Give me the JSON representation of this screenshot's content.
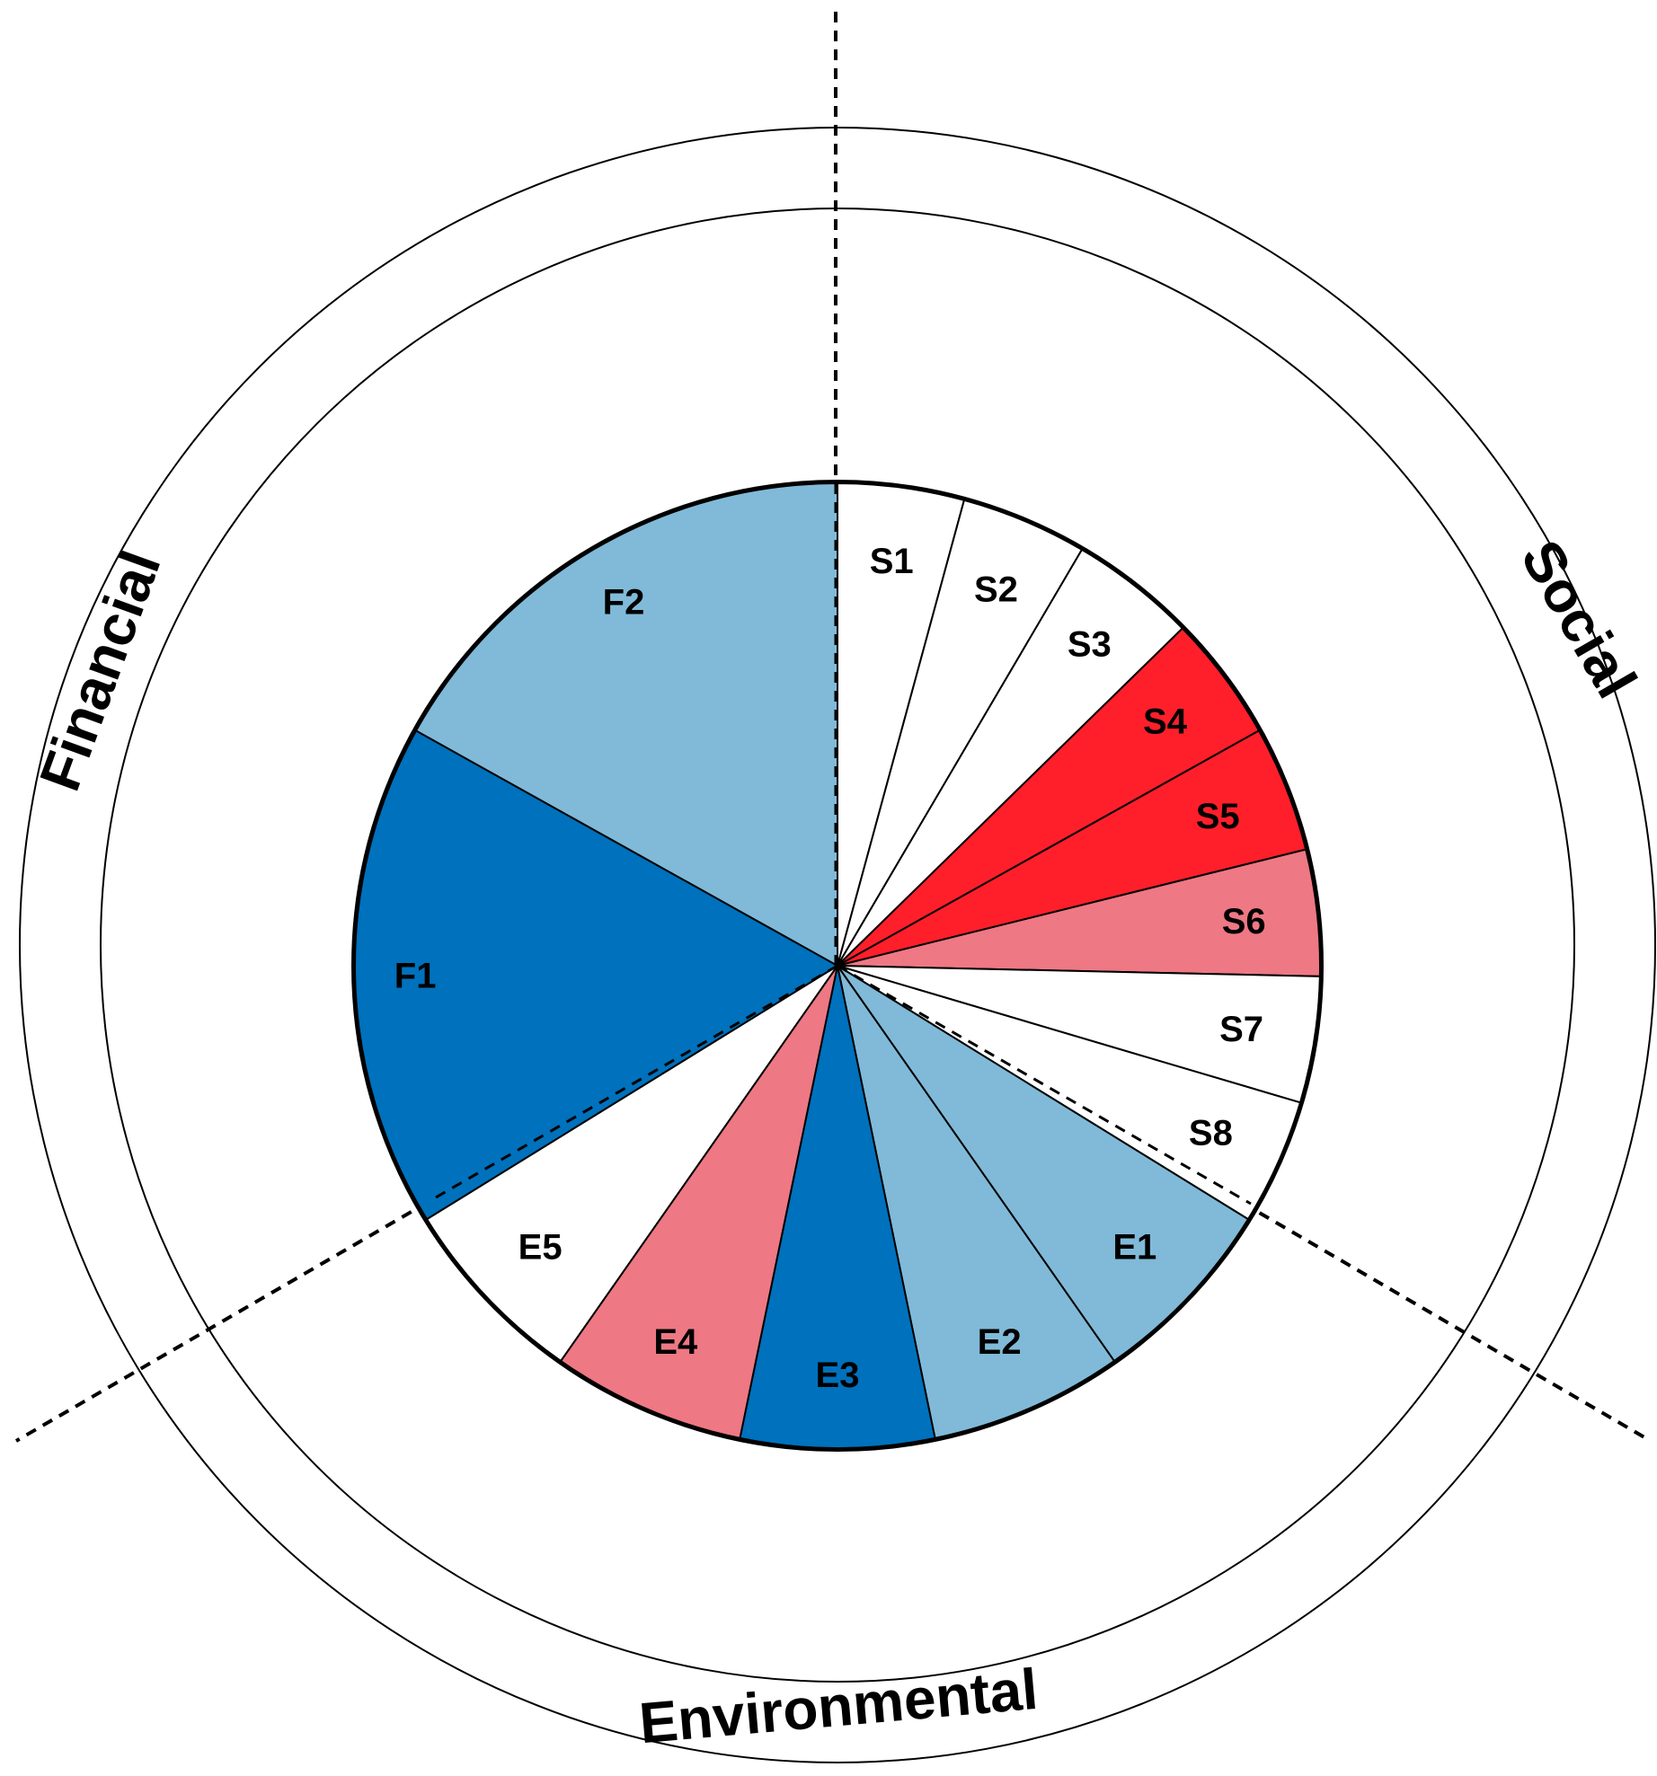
{
  "chart_data": {
    "type": "pie",
    "start_angle_deg": 0,
    "direction": "clockwise",
    "slices": [
      {
        "label": "S1",
        "value": 15,
        "color": "#ffffff"
      },
      {
        "label": "S2",
        "value": 15,
        "color": "#ffffff"
      },
      {
        "label": "S3",
        "value": 15,
        "color": "#ffffff"
      },
      {
        "label": "S4",
        "value": 15,
        "color": "#ff1f2b"
      },
      {
        "label": "S5",
        "value": 15,
        "color": "#ff1f2b"
      },
      {
        "label": "S6",
        "value": 15,
        "color": "#ee7884"
      },
      {
        "label": "S7",
        "value": 15,
        "color": "#ffffff"
      },
      {
        "label": "S8",
        "value": 15,
        "color": "#ffffff"
      },
      {
        "label": "E1",
        "value": 23,
        "color": "#80bad8"
      },
      {
        "label": "E2",
        "value": 23,
        "color": "#80bad8"
      },
      {
        "label": "E3",
        "value": 23,
        "color": "#0071bc"
      },
      {
        "label": "E4",
        "value": 23,
        "color": "#ee7884"
      },
      {
        "label": "E5",
        "value": 23,
        "color": "#ffffff"
      },
      {
        "label": "F1",
        "value": 60,
        "color": "#0071bc"
      },
      {
        "label": "F2",
        "value": 60,
        "color": "#80bad8"
      }
    ],
    "sectors": [
      {
        "name": "Social",
        "slices": [
          "S1",
          "S2",
          "S3",
          "S4",
          "S5",
          "S6",
          "S7",
          "S8"
        ]
      },
      {
        "name": "Environmental",
        "slices": [
          "E1",
          "E2",
          "E3",
          "E4",
          "E5"
        ]
      },
      {
        "name": "Financial",
        "slices": [
          "F1",
          "F2"
        ]
      }
    ],
    "divider_style": "dashed",
    "outer_rings": 2
  }
}
